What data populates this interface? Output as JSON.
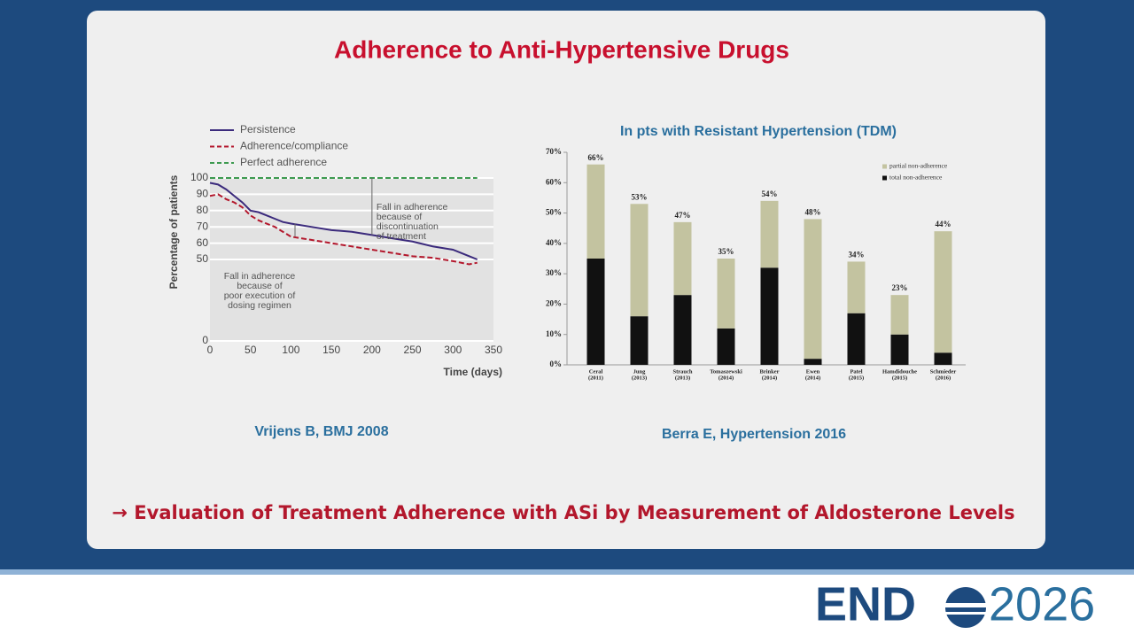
{
  "slide": {
    "title": "Adherence to Anti-Hypertensive Drugs",
    "left_citation": "Vrijens B, BMJ 2008",
    "right_citation": "Berra E, Hypertension 2016",
    "conclusion": "→ Evaluation of Treatment Adherence with ASi by Measurement of Aldosterone Levels",
    "logo_left": "END",
    "logo_right": "2026"
  },
  "chart_data": [
    {
      "type": "line",
      "xlabel": "Time (days)",
      "ylabel": "Percentage of patients",
      "x": [
        0,
        10,
        20,
        30,
        40,
        50,
        60,
        70,
        80,
        90,
        100,
        125,
        150,
        175,
        200,
        225,
        250,
        275,
        300,
        320,
        330
      ],
      "series": [
        {
          "name": "Persistence",
          "color": "#3b2a7c",
          "dashed": false,
          "values": [
            97,
            96,
            93,
            89,
            85,
            80,
            79,
            77,
            75,
            73,
            72,
            70,
            68,
            67,
            65,
            63,
            61,
            58,
            56,
            52,
            50
          ]
        },
        {
          "name": "Adherence/compliance",
          "color": "#b3172c",
          "dashed": true,
          "values": [
            89,
            90,
            87,
            85,
            82,
            77,
            74,
            72,
            70,
            67,
            64,
            62,
            60,
            58,
            56,
            54,
            52,
            51,
            49,
            47,
            48
          ]
        },
        {
          "name": "Perfect adherence",
          "color": "#3d9a50",
          "dashed": true,
          "values": [
            100,
            100,
            100,
            100,
            100,
            100,
            100,
            100,
            100,
            100,
            100,
            100,
            100,
            100,
            100,
            100,
            100,
            100,
            100,
            100,
            100
          ]
        }
      ],
      "xlim": [
        0,
        350
      ],
      "xticks": [
        0,
        50,
        100,
        150,
        200,
        250,
        300,
        350
      ],
      "ylim": [
        0,
        100
      ],
      "yticks": [
        0,
        50,
        60,
        70,
        80,
        90,
        100
      ],
      "grid": true,
      "annotations": [
        {
          "lines": [
            "Fall in adherence",
            "because of",
            "discontinuation",
            "of treatment"
          ],
          "x": 200,
          "y_from": 100,
          "y_to": 65
        },
        {
          "lines": [
            "Fall in adherence",
            "because of",
            "poor execution of",
            "dosing regimen"
          ],
          "x": 105,
          "y_from": 72,
          "y_to": 64
        }
      ]
    },
    {
      "type": "bar",
      "stacked": true,
      "title": "In pts with Resistant Hypertension (TDM)",
      "categories": [
        [
          "Ceral",
          "(2011)"
        ],
        [
          "Jung",
          "(2013)"
        ],
        [
          "Strauch",
          "(2013)"
        ],
        [
          "Tomaszewski",
          "(2014)"
        ],
        [
          "Brinker",
          "(2014)"
        ],
        [
          "Ewen",
          "(2014)"
        ],
        [
          "Patel",
          "(2015)"
        ],
        [
          "Hamdidouche",
          "(2015)"
        ],
        [
          "Schmieder",
          "(2016)"
        ]
      ],
      "series": [
        {
          "name": "total non-adherence",
          "color": "#111111",
          "values": [
            35,
            16,
            23,
            12,
            32,
            2,
            17,
            10,
            4
          ]
        },
        {
          "name": "partial non-adherence",
          "color": "#c3c3a0",
          "values": [
            31,
            37,
            24,
            23,
            22,
            46,
            17,
            13,
            40
          ]
        }
      ],
      "totals": {
        "values": [
          66,
          53,
          47,
          35,
          54,
          48,
          34,
          23,
          44
        ],
        "value_labels": [
          "66%",
          "53%",
          "47%",
          "35%",
          "54%",
          "48%",
          "34%",
          "23%",
          "44%"
        ]
      },
      "ylim": [
        0,
        70
      ],
      "yticks": [
        {
          "value": 0,
          "label": "0%"
        },
        {
          "value": 10,
          "label": "10%"
        },
        {
          "value": 20,
          "label": "20%"
        },
        {
          "value": 30,
          "label": "30%"
        },
        {
          "value": 40,
          "label": "40%"
        },
        {
          "value": 50,
          "label": "50%"
        },
        {
          "value": 60,
          "label": "60%"
        },
        {
          "value": 70,
          "label": "70%"
        }
      ]
    }
  ]
}
